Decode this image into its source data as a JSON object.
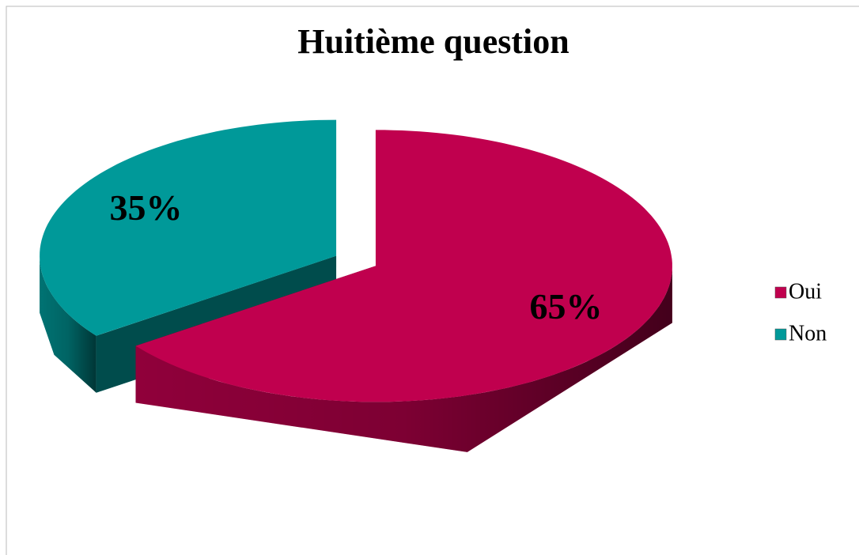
{
  "chart_data": {
    "type": "pie",
    "title": "Huitième question",
    "categories": [
      "Oui",
      "Non"
    ],
    "values": [
      65,
      35
    ],
    "value_labels": [
      "65%",
      "35%"
    ],
    "colors": [
      "#c0004e",
      "#009999"
    ],
    "legend": "right"
  }
}
